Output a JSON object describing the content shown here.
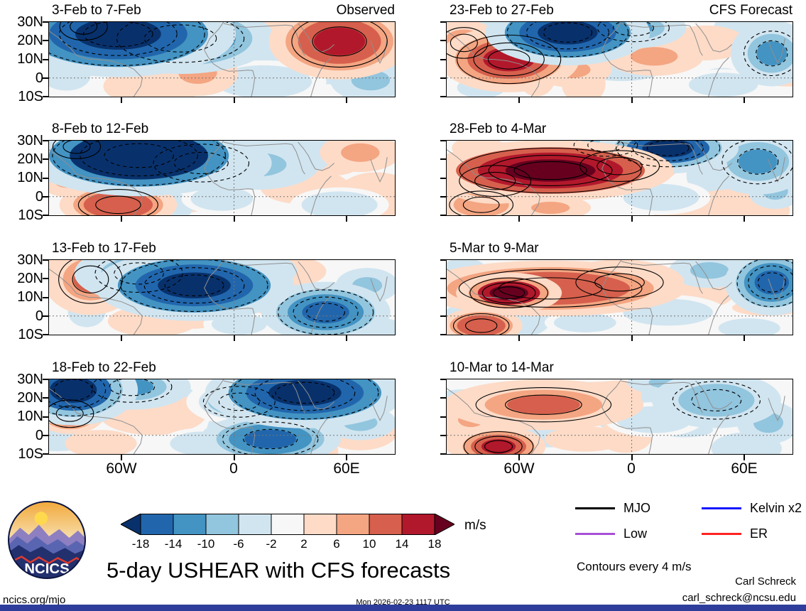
{
  "logo": {
    "text": "NCICS"
  },
  "page": {
    "footer_left": "ncics.org/mjo",
    "timestamp": "Mon 2026-02-23 1117 UTC",
    "credit_name": "Carl Schreck",
    "credit_email": "carl_schreck@ncsu.edu",
    "bottom_bar_color": "#2e3d9b"
  },
  "chart_data": {
    "type": "heatmap",
    "title": "5-day USHEAR with CFS forecasts",
    "units_label": "m/s",
    "contour_note": "Contours every 4 m/s",
    "column_labels": {
      "left": "Observed",
      "right": "CFS Forecast"
    },
    "x_ticks": [
      "60W",
      "0",
      "60E"
    ],
    "y_ticks": [
      "30N",
      "20N",
      "10N",
      "0",
      "10S"
    ],
    "colorbar": {
      "levels": [
        -18,
        -14,
        -10,
        -6,
        -2,
        2,
        6,
        10,
        14,
        18
      ],
      "colors": [
        "#08316c",
        "#2166ac",
        "#4393c3",
        "#92c5de",
        "#d1e5f0",
        "#f7f7f7",
        "#fddbc7",
        "#f4a582",
        "#d6604d",
        "#b2182b",
        "#67001f"
      ]
    },
    "legend": [
      {
        "label": "MJO",
        "color": "#000000"
      },
      {
        "label": "Kelvin x2",
        "color": "#1616ff"
      },
      {
        "label": "Low",
        "color": "#a84fd6"
      },
      {
        "label": "ER",
        "color": "#ff2222"
      }
    ],
    "panels": [
      {
        "title": "3-Feb to 7-Feb",
        "group": "Observed",
        "anomalies": [
          {
            "x": 0.1,
            "y": 0.06,
            "rx": 0.06,
            "ry": 0.16,
            "v": 10
          },
          {
            "x": 0.2,
            "y": 0.16,
            "rx": 0.2,
            "ry": 0.34,
            "v": -22
          },
          {
            "x": 0.38,
            "y": 0.22,
            "rx": 0.16,
            "ry": 0.28,
            "v": -15
          },
          {
            "x": 0.55,
            "y": 0.08,
            "rx": 0.09,
            "ry": 0.16,
            "v": -7
          },
          {
            "x": 0.84,
            "y": 0.26,
            "rx": 0.12,
            "ry": 0.3,
            "v": 15
          },
          {
            "x": 0.7,
            "y": 0.14,
            "rx": 0.08,
            "ry": 0.18,
            "v": 7
          },
          {
            "x": 0.43,
            "y": 0.68,
            "rx": 0.09,
            "ry": 0.24,
            "v": 7
          },
          {
            "x": 0.3,
            "y": 0.86,
            "rx": 0.11,
            "ry": 0.2,
            "v": 4
          },
          {
            "x": 0.62,
            "y": 0.8,
            "rx": 0.14,
            "ry": 0.22,
            "v": -4
          },
          {
            "x": 0.93,
            "y": 0.78,
            "rx": 0.09,
            "ry": 0.22,
            "v": -7
          },
          {
            "x": 0.05,
            "y": 0.72,
            "rx": 0.07,
            "ry": 0.2,
            "v": -4
          }
        ]
      },
      {
        "title": "8-Feb to 12-Feb",
        "group": "Observed",
        "anomalies": [
          {
            "x": 0.08,
            "y": 0.08,
            "rx": 0.06,
            "ry": 0.14,
            "v": 11
          },
          {
            "x": 0.26,
            "y": 0.2,
            "rx": 0.2,
            "ry": 0.32,
            "v": -24
          },
          {
            "x": 0.44,
            "y": 0.3,
            "rx": 0.12,
            "ry": 0.22,
            "v": -12
          },
          {
            "x": 0.05,
            "y": 0.52,
            "rx": 0.06,
            "ry": 0.18,
            "v": 7
          },
          {
            "x": 0.2,
            "y": 0.86,
            "rx": 0.1,
            "ry": 0.18,
            "v": 13
          },
          {
            "x": 0.6,
            "y": 0.32,
            "rx": 0.14,
            "ry": 0.26,
            "v": -7
          },
          {
            "x": 0.74,
            "y": 0.62,
            "rx": 0.1,
            "ry": 0.18,
            "v": 4
          },
          {
            "x": 0.9,
            "y": 0.16,
            "rx": 0.09,
            "ry": 0.2,
            "v": 7
          },
          {
            "x": 0.84,
            "y": 0.86,
            "rx": 0.11,
            "ry": 0.18,
            "v": -4
          },
          {
            "x": 0.5,
            "y": 0.78,
            "rx": 0.09,
            "ry": 0.16,
            "v": -4
          }
        ]
      },
      {
        "title": "13-Feb to 17-Feb",
        "group": "Observed",
        "anomalies": [
          {
            "x": 0.12,
            "y": 0.26,
            "rx": 0.08,
            "ry": 0.28,
            "v": 11
          },
          {
            "x": 0.05,
            "y": 0.08,
            "rx": 0.05,
            "ry": 0.14,
            "v": 7
          },
          {
            "x": 0.42,
            "y": 0.34,
            "rx": 0.17,
            "ry": 0.28,
            "v": -22
          },
          {
            "x": 0.26,
            "y": 0.18,
            "rx": 0.11,
            "ry": 0.22,
            "v": -11
          },
          {
            "x": 0.6,
            "y": 0.14,
            "rx": 0.09,
            "ry": 0.18,
            "v": -7
          },
          {
            "x": 0.68,
            "y": 0.42,
            "rx": 0.08,
            "ry": 0.14,
            "v": 4
          },
          {
            "x": 0.8,
            "y": 0.7,
            "rx": 0.11,
            "ry": 0.24,
            "v": -17
          },
          {
            "x": 0.92,
            "y": 0.34,
            "rx": 0.07,
            "ry": 0.18,
            "v": -7
          },
          {
            "x": 0.3,
            "y": 0.82,
            "rx": 0.1,
            "ry": 0.16,
            "v": 4
          },
          {
            "x": 0.55,
            "y": 0.86,
            "rx": 0.08,
            "ry": 0.14,
            "v": -4
          }
        ]
      },
      {
        "title": "18-Feb to 22-Feb",
        "group": "Observed",
        "anomalies": [
          {
            "x": 0.07,
            "y": 0.14,
            "rx": 0.11,
            "ry": 0.28,
            "v": -19
          },
          {
            "x": 0.24,
            "y": 0.1,
            "rx": 0.1,
            "ry": 0.18,
            "v": -11
          },
          {
            "x": 0.06,
            "y": 0.46,
            "rx": 0.06,
            "ry": 0.16,
            "v": 13
          },
          {
            "x": 0.3,
            "y": 0.46,
            "rx": 0.12,
            "ry": 0.22,
            "v": 4
          },
          {
            "x": 0.74,
            "y": 0.18,
            "rx": 0.17,
            "ry": 0.28,
            "v": -22
          },
          {
            "x": 0.55,
            "y": 0.3,
            "rx": 0.09,
            "ry": 0.18,
            "v": -8
          },
          {
            "x": 0.64,
            "y": 0.8,
            "rx": 0.12,
            "ry": 0.2,
            "v": -15
          },
          {
            "x": 0.9,
            "y": 0.58,
            "rx": 0.08,
            "ry": 0.18,
            "v": -7
          },
          {
            "x": 0.44,
            "y": 0.86,
            "rx": 0.09,
            "ry": 0.16,
            "v": -4
          },
          {
            "x": 0.15,
            "y": 0.86,
            "rx": 0.08,
            "ry": 0.14,
            "v": 4
          }
        ]
      },
      {
        "title": "23-Feb to 27-Feb",
        "group": "CFS Forecast",
        "anomalies": [
          {
            "x": 0.35,
            "y": 0.14,
            "rx": 0.14,
            "ry": 0.26,
            "v": -22
          },
          {
            "x": 0.54,
            "y": 0.08,
            "rx": 0.09,
            "ry": 0.16,
            "v": -11
          },
          {
            "x": 0.18,
            "y": 0.5,
            "rx": 0.12,
            "ry": 0.26,
            "v": 17
          },
          {
            "x": 0.05,
            "y": 0.28,
            "rx": 0.06,
            "ry": 0.18,
            "v": 9
          },
          {
            "x": 0.36,
            "y": 0.64,
            "rx": 0.09,
            "ry": 0.18,
            "v": 7
          },
          {
            "x": 0.6,
            "y": 0.46,
            "rx": 0.11,
            "ry": 0.2,
            "v": 7
          },
          {
            "x": 0.75,
            "y": 0.28,
            "rx": 0.09,
            "ry": 0.18,
            "v": 4
          },
          {
            "x": 0.94,
            "y": 0.42,
            "rx": 0.07,
            "ry": 0.26,
            "v": -11
          },
          {
            "x": 0.8,
            "y": 0.84,
            "rx": 0.1,
            "ry": 0.16,
            "v": -4
          },
          {
            "x": 0.1,
            "y": 0.88,
            "rx": 0.07,
            "ry": 0.14,
            "v": -4
          }
        ]
      },
      {
        "title": "28-Feb to 4-Mar",
        "group": "CFS Forecast",
        "anomalies": [
          {
            "x": 0.3,
            "y": 0.4,
            "rx": 0.21,
            "ry": 0.24,
            "v": 22
          },
          {
            "x": 0.14,
            "y": 0.54,
            "rx": 0.09,
            "ry": 0.18,
            "v": 15
          },
          {
            "x": 0.5,
            "y": 0.34,
            "rx": 0.1,
            "ry": 0.18,
            "v": 11
          },
          {
            "x": 0.64,
            "y": 0.1,
            "rx": 0.12,
            "ry": 0.2,
            "v": -19
          },
          {
            "x": 0.46,
            "y": 0.06,
            "rx": 0.08,
            "ry": 0.13,
            "v": -8
          },
          {
            "x": 0.9,
            "y": 0.28,
            "rx": 0.09,
            "ry": 0.26,
            "v": -11
          },
          {
            "x": 0.95,
            "y": 0.68,
            "rx": 0.06,
            "ry": 0.18,
            "v": -7
          },
          {
            "x": 0.1,
            "y": 0.86,
            "rx": 0.08,
            "ry": 0.16,
            "v": 9
          },
          {
            "x": 0.3,
            "y": 0.9,
            "rx": 0.09,
            "ry": 0.13,
            "v": 6
          },
          {
            "x": 0.62,
            "y": 0.76,
            "rx": 0.11,
            "ry": 0.18,
            "v": -4
          }
        ]
      },
      {
        "title": "5-Mar to 9-Mar",
        "group": "CFS Forecast",
        "anomalies": [
          {
            "x": 0.3,
            "y": 0.38,
            "rx": 0.23,
            "ry": 0.22,
            "v": 13
          },
          {
            "x": 0.18,
            "y": 0.44,
            "rx": 0.09,
            "ry": 0.16,
            "v": 18
          },
          {
            "x": 0.5,
            "y": 0.3,
            "rx": 0.11,
            "ry": 0.18,
            "v": 8
          },
          {
            "x": 0.1,
            "y": 0.88,
            "rx": 0.07,
            "ry": 0.14,
            "v": 13
          },
          {
            "x": 0.94,
            "y": 0.3,
            "rx": 0.08,
            "ry": 0.26,
            "v": -17
          },
          {
            "x": 0.76,
            "y": 0.14,
            "rx": 0.09,
            "ry": 0.18,
            "v": -7
          },
          {
            "x": 0.64,
            "y": 0.7,
            "rx": 0.13,
            "ry": 0.18,
            "v": -4
          },
          {
            "x": 0.4,
            "y": 0.84,
            "rx": 0.09,
            "ry": 0.13,
            "v": -4
          },
          {
            "x": 0.05,
            "y": 0.14,
            "rx": 0.05,
            "ry": 0.13,
            "v": -6
          }
        ]
      },
      {
        "title": "10-Mar to 14-Mar",
        "group": "CFS Forecast",
        "anomalies": [
          {
            "x": 0.28,
            "y": 0.34,
            "rx": 0.17,
            "ry": 0.2,
            "v": 11
          },
          {
            "x": 0.44,
            "y": 0.24,
            "rx": 0.09,
            "ry": 0.16,
            "v": 7
          },
          {
            "x": 0.15,
            "y": 0.9,
            "rx": 0.08,
            "ry": 0.16,
            "v": 17
          },
          {
            "x": 0.07,
            "y": 0.54,
            "rx": 0.06,
            "ry": 0.16,
            "v": 7
          },
          {
            "x": 0.6,
            "y": 0.54,
            "rx": 0.11,
            "ry": 0.18,
            "v": -4
          },
          {
            "x": 0.78,
            "y": 0.28,
            "rx": 0.11,
            "ry": 0.22,
            "v": -9
          },
          {
            "x": 0.93,
            "y": 0.58,
            "rx": 0.07,
            "ry": 0.22,
            "v": -7
          },
          {
            "x": 0.64,
            "y": 0.04,
            "rx": 0.09,
            "ry": 0.13,
            "v": -7
          },
          {
            "x": 0.4,
            "y": 0.8,
            "rx": 0.09,
            "ry": 0.13,
            "v": 4
          }
        ]
      }
    ]
  }
}
